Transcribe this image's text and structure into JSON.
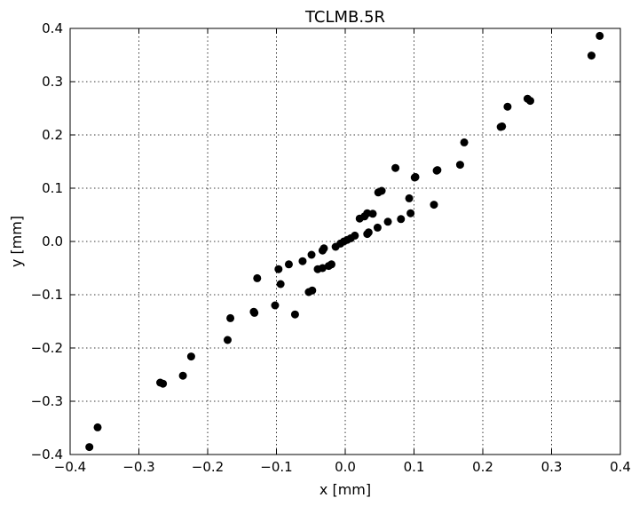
{
  "chart_data": {
    "type": "scatter",
    "title": "TCLMB.5R",
    "xlabel": "x [mm]",
    "ylabel": "y [mm]",
    "xlim": [
      -0.4,
      0.4
    ],
    "ylim": [
      -0.4,
      0.4
    ],
    "x_ticks": [
      -0.4,
      -0.3,
      -0.2,
      -0.1,
      0.0,
      0.1,
      0.2,
      0.3,
      0.4
    ],
    "y_ticks": [
      -0.4,
      -0.3,
      -0.2,
      -0.1,
      0.0,
      0.1,
      0.2,
      0.3,
      0.4
    ],
    "x_tick_labels": [
      "−0.4",
      "−0.3",
      "−0.2",
      "−0.1",
      "0.0",
      "0.1",
      "0.2",
      "0.3",
      "0.4"
    ],
    "y_tick_labels": [
      "−0.4",
      "−0.3",
      "−0.2",
      "−0.1",
      "0.0",
      "0.1",
      "0.2",
      "0.3",
      "0.4"
    ],
    "grid": true,
    "marker_color": "#000000",
    "series": [
      {
        "points": [
          [
            -0.372,
            -0.386
          ],
          [
            -0.36,
            -0.349
          ],
          [
            -0.269,
            -0.265
          ],
          [
            -0.265,
            -0.267
          ],
          [
            -0.236,
            -0.252
          ],
          [
            -0.224,
            -0.216
          ],
          [
            -0.171,
            -0.185
          ],
          [
            -0.167,
            -0.144
          ],
          [
            -0.133,
            -0.132
          ],
          [
            -0.132,
            -0.134
          ],
          [
            -0.128,
            -0.069
          ],
          [
            -0.102,
            -0.12
          ],
          [
            -0.097,
            -0.052
          ],
          [
            -0.094,
            -0.08
          ],
          [
            -0.082,
            -0.043
          ],
          [
            -0.073,
            -0.137
          ],
          [
            -0.062,
            -0.037
          ],
          [
            -0.053,
            -0.095
          ],
          [
            -0.048,
            -0.092
          ],
          [
            -0.049,
            -0.025
          ],
          [
            -0.04,
            -0.052
          ],
          [
            -0.033,
            -0.05
          ],
          [
            -0.033,
            -0.017
          ],
          [
            -0.031,
            -0.013
          ],
          [
            -0.024,
            -0.046
          ],
          [
            -0.02,
            -0.043
          ],
          [
            -0.014,
            -0.01
          ],
          [
            -0.007,
            -0.004
          ],
          [
            -0.002,
            0.0
          ],
          [
            0.003,
            0.003
          ],
          [
            0.008,
            0.006
          ],
          [
            0.014,
            0.011
          ],
          [
            0.021,
            0.043
          ],
          [
            0.028,
            0.047
          ],
          [
            0.032,
            0.053
          ],
          [
            0.04,
            0.052
          ],
          [
            0.032,
            0.014
          ],
          [
            0.034,
            0.017
          ],
          [
            0.047,
            0.026
          ],
          [
            0.048,
            0.092
          ],
          [
            0.053,
            0.095
          ],
          [
            0.062,
            0.037
          ],
          [
            0.073,
            0.138
          ],
          [
            0.081,
            0.042
          ],
          [
            0.093,
            0.081
          ],
          [
            0.095,
            0.053
          ],
          [
            0.101,
            0.12
          ],
          [
            0.102,
            0.121
          ],
          [
            0.129,
            0.069
          ],
          [
            0.133,
            0.133
          ],
          [
            0.134,
            0.134
          ],
          [
            0.167,
            0.144
          ],
          [
            0.173,
            0.186
          ],
          [
            0.226,
            0.215
          ],
          [
            0.228,
            0.216
          ],
          [
            0.236,
            0.253
          ],
          [
            0.265,
            0.268
          ],
          [
            0.269,
            0.264
          ],
          [
            0.358,
            0.349
          ],
          [
            0.37,
            0.386
          ]
        ]
      }
    ]
  }
}
